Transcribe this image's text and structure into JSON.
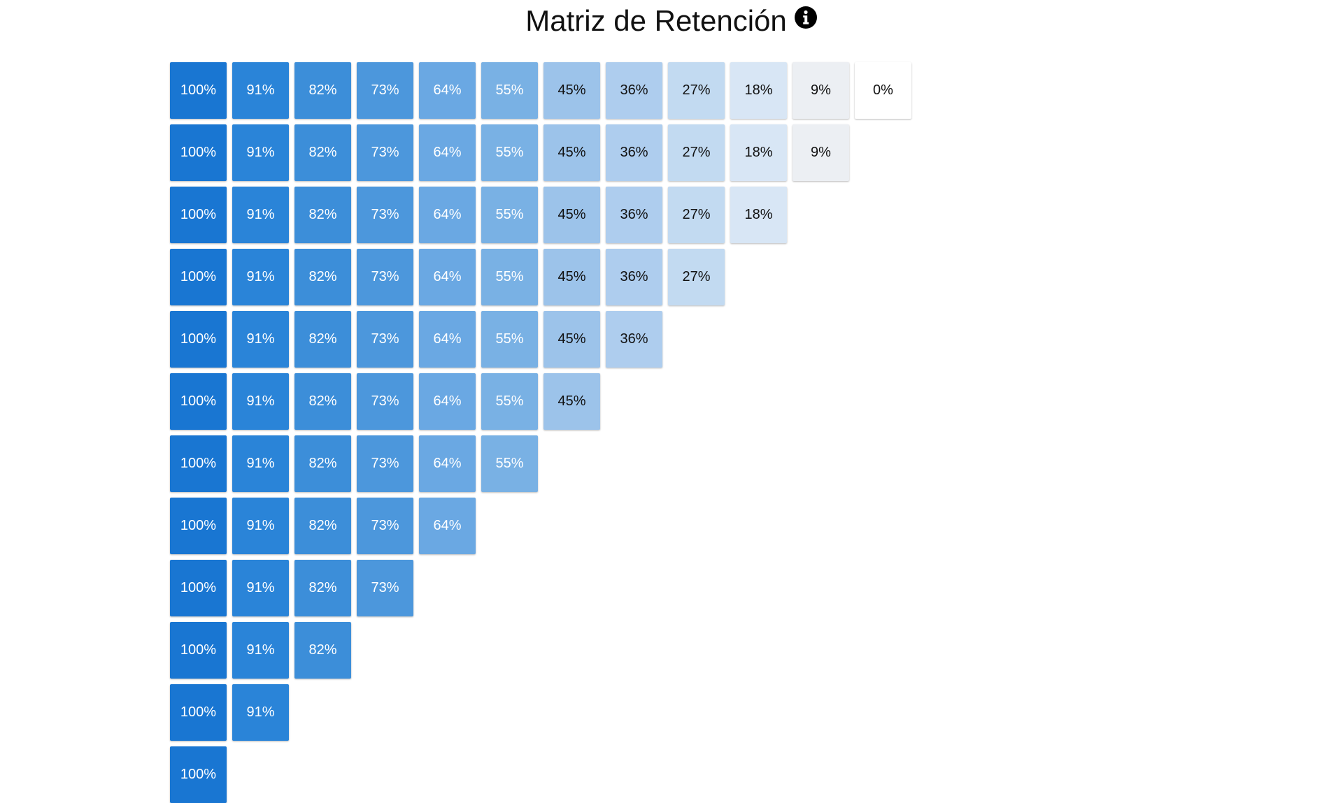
{
  "title": "Matriz de Retención",
  "icons": {
    "info": "info-circle-icon"
  },
  "colors": {
    "text_dark": "#111111",
    "text_light": "#ffffff",
    "scale": [
      "#1976d2",
      "#2a84d8",
      "#3c8ed9",
      "#4c97dc",
      "#6aa8e3",
      "#79b1e4",
      "#9cc3ea",
      "#aecdee",
      "#c2daf1",
      "#d8e6f5",
      "#eceff3",
      "#ffffff"
    ]
  },
  "chart_data": {
    "type": "heatmap",
    "title": "Matriz de Retención",
    "rows": [
      [
        100,
        91,
        82,
        73,
        64,
        55,
        45,
        36,
        27,
        18,
        9,
        0
      ],
      [
        100,
        91,
        82,
        73,
        64,
        55,
        45,
        36,
        27,
        18,
        9
      ],
      [
        100,
        91,
        82,
        73,
        64,
        55,
        45,
        36,
        27,
        18
      ],
      [
        100,
        91,
        82,
        73,
        64,
        55,
        45,
        36,
        27
      ],
      [
        100,
        91,
        82,
        73,
        64,
        55,
        45,
        36
      ],
      [
        100,
        91,
        82,
        73,
        64,
        55,
        45
      ],
      [
        100,
        91,
        82,
        73,
        64,
        55
      ],
      [
        100,
        91,
        82,
        73,
        64
      ],
      [
        100,
        91,
        82,
        73
      ],
      [
        100,
        91,
        82
      ],
      [
        100,
        91
      ],
      [
        100
      ]
    ],
    "value_format": "{v}%"
  }
}
